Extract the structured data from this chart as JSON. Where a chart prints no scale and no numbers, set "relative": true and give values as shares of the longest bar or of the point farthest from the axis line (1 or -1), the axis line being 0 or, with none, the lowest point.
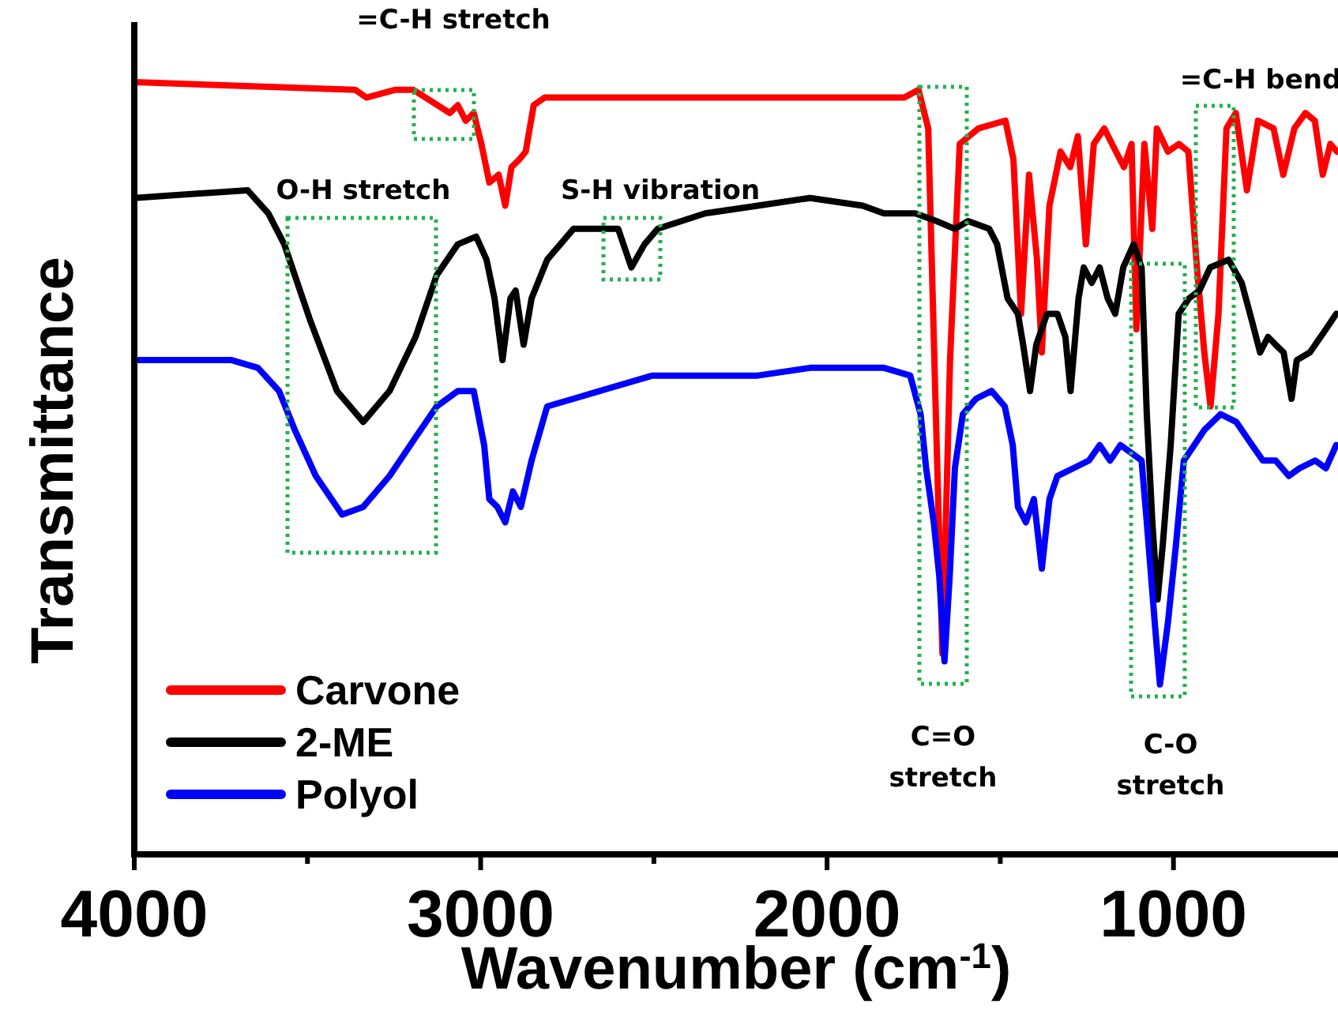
{
  "chart_data": {
    "type": "line",
    "relative": true,
    "xlabel": "Wavenumber (cm$^{-1}$)",
    "ylabel": "Transmittance",
    "xlim": [
      4000,
      525
    ],
    "xticks": [
      4000,
      {
        "value": 3500,
        "label": null
      },
      3000,
      {
        "value": 2500,
        "label": null
      },
      2000,
      {
        "value": 1500,
        "label": null
      },
      1000
    ],
    "legend": "bottom left",
    "grid": false,
    "marker": "none",
    "line_style": "solid",
    "series": [
      {
        "name": "Carvone",
        "color": "#ff0000",
        "x": [
          4000,
          3362,
          3330,
          3248,
          3194,
          3089,
          3066,
          3043,
          3020,
          2998,
          2975,
          2948,
          2929,
          2911,
          2888,
          2870,
          2847,
          2815,
          2565,
          2337,
          2109,
          1836,
          1777,
          1736,
          1708,
          1686,
          1667,
          1645,
          1617,
          1563,
          1485,
          1462,
          1440,
          1417,
          1394,
          1380,
          1358,
          1326,
          1298,
          1276,
          1253,
          1230,
          1200,
          1166,
          1143,
          1121,
          1107,
          1084,
          1061,
          1048,
          1016,
          984,
          957,
          934,
          911,
          893,
          870,
          847,
          820,
          788,
          756,
          711,
          683,
          651,
          619,
          592,
          569,
          547,
          528
        ],
        "values": [
          1.0,
          0.99,
          0.98,
          0.99,
          0.99,
          0.96,
          0.97,
          0.95,
          0.96,
          0.92,
          0.87,
          0.88,
          0.84,
          0.89,
          0.9,
          0.91,
          0.97,
          0.98,
          0.98,
          0.98,
          0.98,
          0.98,
          0.98,
          0.99,
          0.94,
          0.57,
          0.26,
          0.64,
          0.92,
          0.94,
          0.95,
          0.9,
          0.7,
          0.88,
          0.77,
          0.65,
          0.84,
          0.91,
          0.89,
          0.93,
          0.79,
          0.92,
          0.94,
          0.91,
          0.89,
          0.92,
          0.68,
          0.92,
          0.81,
          0.94,
          0.91,
          0.92,
          0.91,
          0.77,
          0.65,
          0.58,
          0.7,
          0.94,
          0.96,
          0.86,
          0.95,
          0.94,
          0.88,
          0.94,
          0.96,
          0.95,
          0.88,
          0.92,
          0.91
        ]
      },
      {
        "name": "2-ME",
        "color": "#000000",
        "x": [
          4000,
          3673,
          3613,
          3567,
          3491,
          3415,
          3339,
          3263,
          3188,
          3127,
          3066,
          3013,
          2983,
          2960,
          2937,
          2914,
          2899,
          2876,
          2853,
          2808,
          2732,
          2656,
          2603,
          2565,
          2527,
          2489,
          2352,
          2200,
          2049,
          1897,
          1836,
          1745,
          1684,
          1631,
          1593,
          1532,
          1509,
          1479,
          1449,
          1434,
          1414,
          1396,
          1365,
          1335,
          1312,
          1297,
          1274,
          1259,
          1236,
          1213,
          1190,
          1168,
          1145,
          1115,
          1092,
          1077,
          1061,
          1046,
          1031,
          1008,
          985,
          955,
          925,
          894,
          841,
          803,
          773,
          750,
          727,
          705,
          682,
          659,
          644,
          606,
          560,
          530
        ],
        "values": [
          0.85,
          0.86,
          0.83,
          0.79,
          0.69,
          0.6,
          0.56,
          0.6,
          0.67,
          0.75,
          0.79,
          0.8,
          0.77,
          0.72,
          0.64,
          0.72,
          0.73,
          0.66,
          0.72,
          0.77,
          0.81,
          0.81,
          0.81,
          0.76,
          0.79,
          0.81,
          0.83,
          0.84,
          0.85,
          0.84,
          0.83,
          0.83,
          0.82,
          0.81,
          0.82,
          0.81,
          0.79,
          0.72,
          0.7,
          0.66,
          0.6,
          0.66,
          0.7,
          0.7,
          0.67,
          0.6,
          0.72,
          0.76,
          0.74,
          0.76,
          0.72,
          0.7,
          0.76,
          0.79,
          0.76,
          0.57,
          0.43,
          0.33,
          0.4,
          0.53,
          0.7,
          0.72,
          0.73,
          0.76,
          0.77,
          0.74,
          0.69,
          0.65,
          0.67,
          0.66,
          0.65,
          0.59,
          0.64,
          0.65,
          0.68,
          0.7
        ]
      },
      {
        "name": "Polyol",
        "color": "#0000ff",
        "x": [
          4000,
          3719,
          3643,
          3582,
          3537,
          3476,
          3400,
          3339,
          3263,
          3188,
          3127,
          3066,
          3020,
          2990,
          2975,
          2952,
          2929,
          2907,
          2884,
          2853,
          2808,
          2732,
          2656,
          2504,
          2352,
          2200,
          2049,
          1897,
          1836,
          1760,
          1730,
          1714,
          1692,
          1676,
          1661,
          1646,
          1631,
          1608,
          1570,
          1525,
          1487,
          1464,
          1449,
          1426,
          1403,
          1380,
          1358,
          1335,
          1289,
          1244,
          1213,
          1183,
          1153,
          1122,
          1092,
          1077,
          1054,
          1039,
          1016,
          993,
          970,
          940,
          910,
          864,
          819,
          773,
          742,
          705,
          667,
          636,
          591,
          560,
          530
        ],
        "values": [
          0.64,
          0.64,
          0.63,
          0.6,
          0.55,
          0.49,
          0.44,
          0.45,
          0.49,
          0.54,
          0.58,
          0.6,
          0.6,
          0.53,
          0.46,
          0.45,
          0.43,
          0.47,
          0.45,
          0.51,
          0.58,
          0.59,
          0.6,
          0.62,
          0.62,
          0.62,
          0.63,
          0.63,
          0.63,
          0.62,
          0.57,
          0.5,
          0.43,
          0.36,
          0.25,
          0.36,
          0.5,
          0.57,
          0.59,
          0.6,
          0.58,
          0.53,
          0.45,
          0.43,
          0.46,
          0.37,
          0.46,
          0.49,
          0.5,
          0.51,
          0.53,
          0.51,
          0.53,
          0.52,
          0.51,
          0.43,
          0.3,
          0.22,
          0.3,
          0.4,
          0.51,
          0.53,
          0.55,
          0.57,
          0.56,
          0.53,
          0.51,
          0.51,
          0.49,
          0.5,
          0.51,
          0.5,
          0.53
        ]
      }
    ],
    "annotations": [
      "=C-H stretch",
      "O-H stretch",
      "S-H vibration",
      "C=O stretch",
      "C-O stretch",
      "=C-H bend"
    ]
  }
}
